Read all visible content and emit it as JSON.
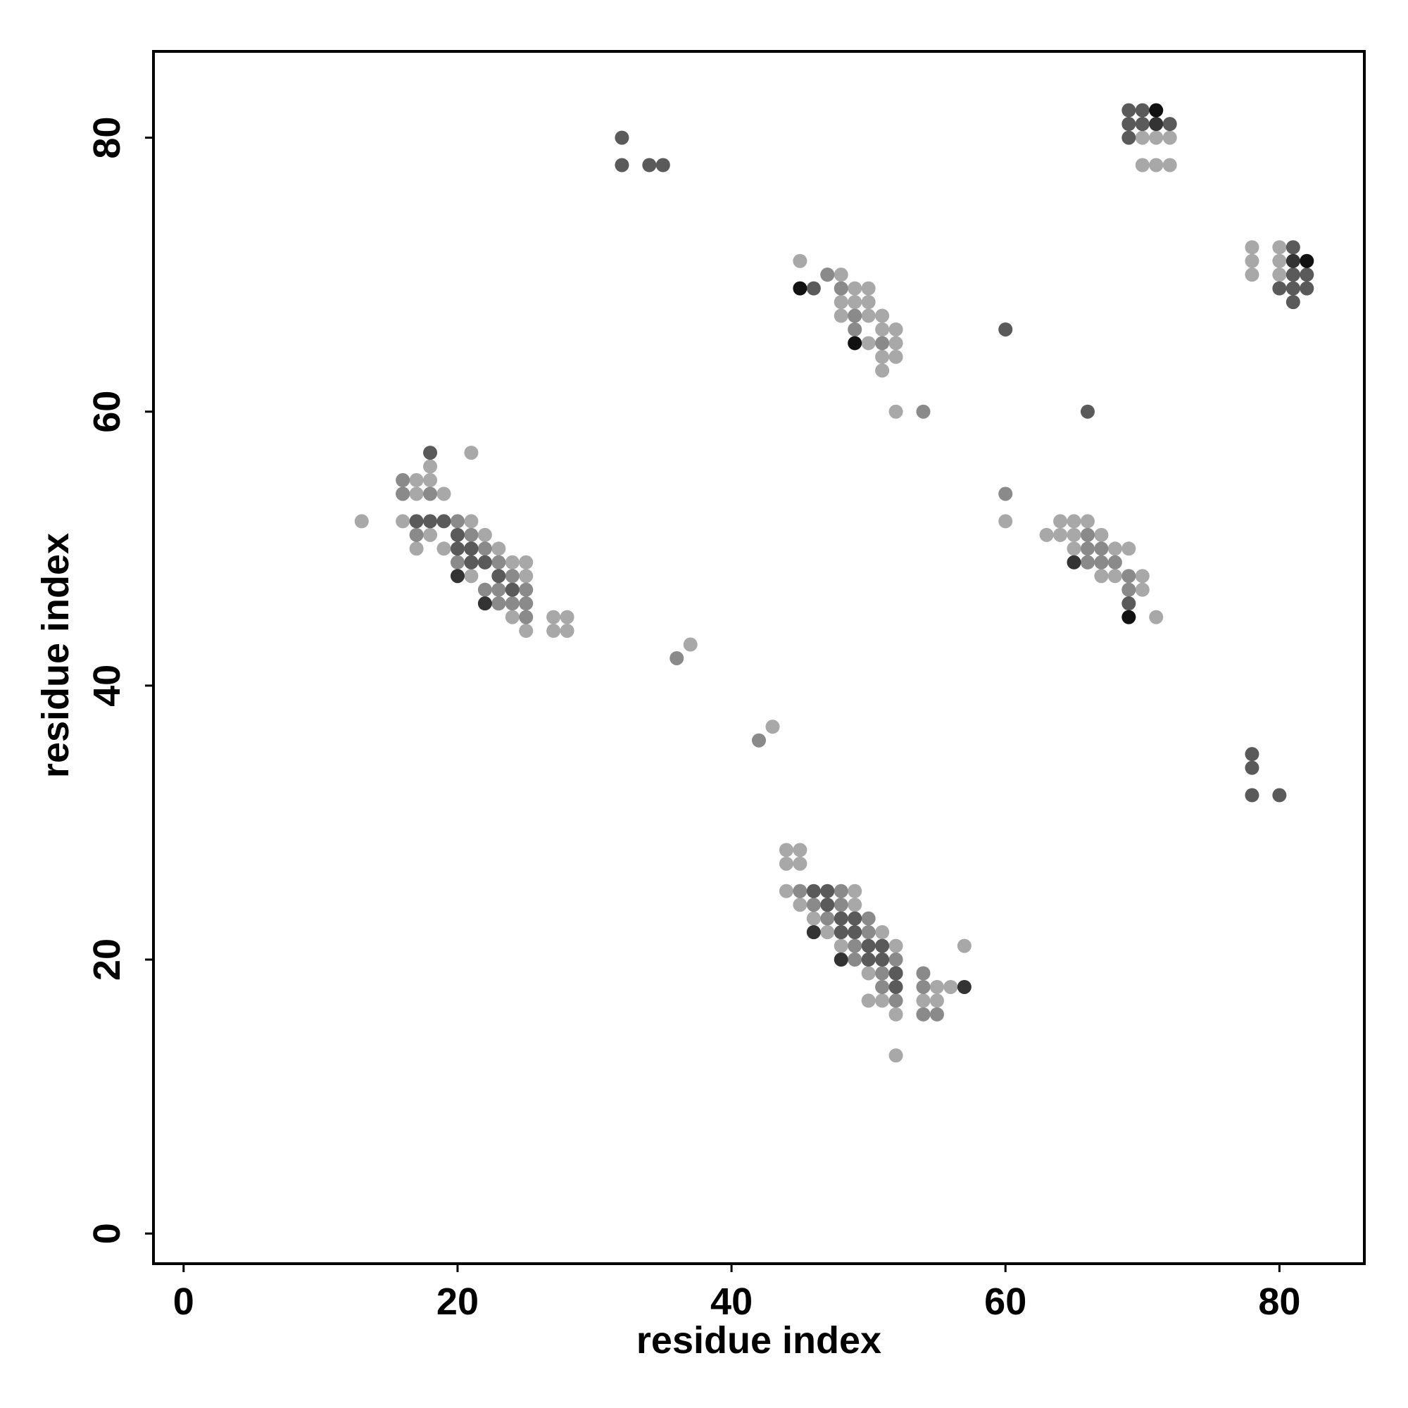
{
  "chart_data": {
    "type": "scatter",
    "x_label": "residue index",
    "y_label": "residue index",
    "xlim": [
      -2.2,
      86.2
    ],
    "ylim": [
      -2.2,
      86.3
    ],
    "xticks": [
      0,
      20,
      40,
      60,
      80
    ],
    "yticks": [
      0,
      20,
      40,
      60,
      80
    ],
    "series": [
      {
        "color": "#a8a8a8",
        "x": [
          13,
          17,
          18,
          16,
          17,
          19,
          18,
          21,
          16,
          21,
          18,
          22,
          17,
          19,
          23,
          24,
          25,
          21,
          25,
          23,
          24,
          27,
          28,
          25,
          27,
          28,
          37,
          44,
          45,
          44,
          45,
          44,
          49,
          45,
          49,
          46,
          47,
          51,
          48,
          52,
          50,
          55,
          56,
          50,
          51,
          54,
          55,
          52,
          52,
          57,
          45,
          48,
          47,
          49,
          50,
          48,
          49,
          50,
          48,
          50,
          51,
          51,
          52,
          50,
          52,
          51,
          52,
          51,
          52,
          60,
          63,
          64,
          65,
          66,
          64,
          65,
          67,
          65,
          68,
          69,
          66,
          67,
          68,
          70,
          69,
          70,
          71,
          70,
          71,
          72,
          70,
          71,
          72,
          78,
          80,
          78,
          80,
          78,
          80,
          43
        ],
        "values": [
          52,
          55,
          55,
          54,
          54,
          54,
          56,
          57,
          52,
          52,
          51,
          51,
          50,
          50,
          50,
          49,
          49,
          48,
          48,
          46,
          45,
          45,
          45,
          44,
          44,
          44,
          43,
          28,
          28,
          27,
          27,
          25,
          25,
          24,
          24,
          23,
          22,
          22,
          21,
          21,
          19,
          18,
          18,
          17,
          17,
          17,
          17,
          16,
          13,
          21,
          71,
          70,
          70,
          69,
          69,
          68,
          68,
          68,
          67,
          67,
          67,
          66,
          66,
          65,
          65,
          64,
          64,
          63,
          60,
          52,
          51,
          52,
          52,
          52,
          51,
          51,
          51,
          50,
          50,
          50,
          49,
          48,
          48,
          48,
          47,
          47,
          45,
          80,
          80,
          80,
          78,
          78,
          78,
          72,
          72,
          71,
          71,
          70,
          70,
          37
        ]
      },
      {
        "color": "#8a8a8a",
        "x": [
          16,
          16,
          18,
          20,
          17,
          21,
          22,
          22,
          20,
          23,
          23,
          24,
          24,
          22,
          23,
          25,
          24,
          25,
          25,
          36,
          42,
          45,
          46,
          48,
          48,
          47,
          50,
          50,
          49,
          52,
          49,
          52,
          51,
          54,
          51,
          54,
          52,
          54,
          55,
          47,
          48,
          49,
          49,
          51,
          66,
          54,
          60,
          66,
          67,
          66,
          67,
          68,
          69,
          69
        ],
        "values": [
          55,
          54,
          54,
          52,
          51,
          51,
          50,
          49,
          49,
          49,
          47,
          48,
          47,
          47,
          46,
          47,
          46,
          46,
          45,
          42,
          36,
          25,
          24,
          25,
          24,
          23,
          23,
          22,
          21,
          20,
          20,
          19,
          19,
          19,
          18,
          18,
          17,
          16,
          16,
          70,
          69,
          67,
          66,
          65,
          51,
          60,
          54,
          50,
          50,
          49,
          49,
          49,
          48,
          47
        ]
      },
      {
        "color": "#5a5a5a",
        "x": [
          18,
          17,
          18,
          19,
          20,
          21,
          20,
          21,
          21,
          22,
          23,
          24,
          32,
          32,
          34,
          35,
          46,
          47,
          47,
          48,
          49,
          48,
          49,
          50,
          50,
          51,
          51,
          52,
          52,
          46,
          60,
          66,
          69,
          69,
          70,
          69,
          70,
          72,
          69,
          81,
          81,
          82,
          80,
          81,
          82,
          81,
          78,
          78,
          78,
          80
        ],
        "values": [
          57,
          52,
          52,
          52,
          51,
          50,
          50,
          50,
          49,
          49,
          48,
          47,
          80,
          78,
          78,
          78,
          25,
          25,
          24,
          23,
          23,
          22,
          22,
          21,
          20,
          21,
          20,
          19,
          18,
          69,
          66,
          60,
          46,
          82,
          82,
          81,
          81,
          81,
          80,
          72,
          70,
          70,
          69,
          69,
          69,
          68,
          35,
          34,
          32,
          32
        ]
      },
      {
        "color": "#333333",
        "x": [
          20,
          22,
          46,
          48,
          57,
          65,
          71,
          81
        ],
        "values": [
          48,
          46,
          22,
          20,
          18,
          49,
          81,
          71
        ]
      },
      {
        "color": "#111111",
        "x": [
          45,
          49,
          69,
          71,
          82
        ],
        "values": [
          69,
          65,
          45,
          82,
          71
        ]
      }
    ]
  }
}
